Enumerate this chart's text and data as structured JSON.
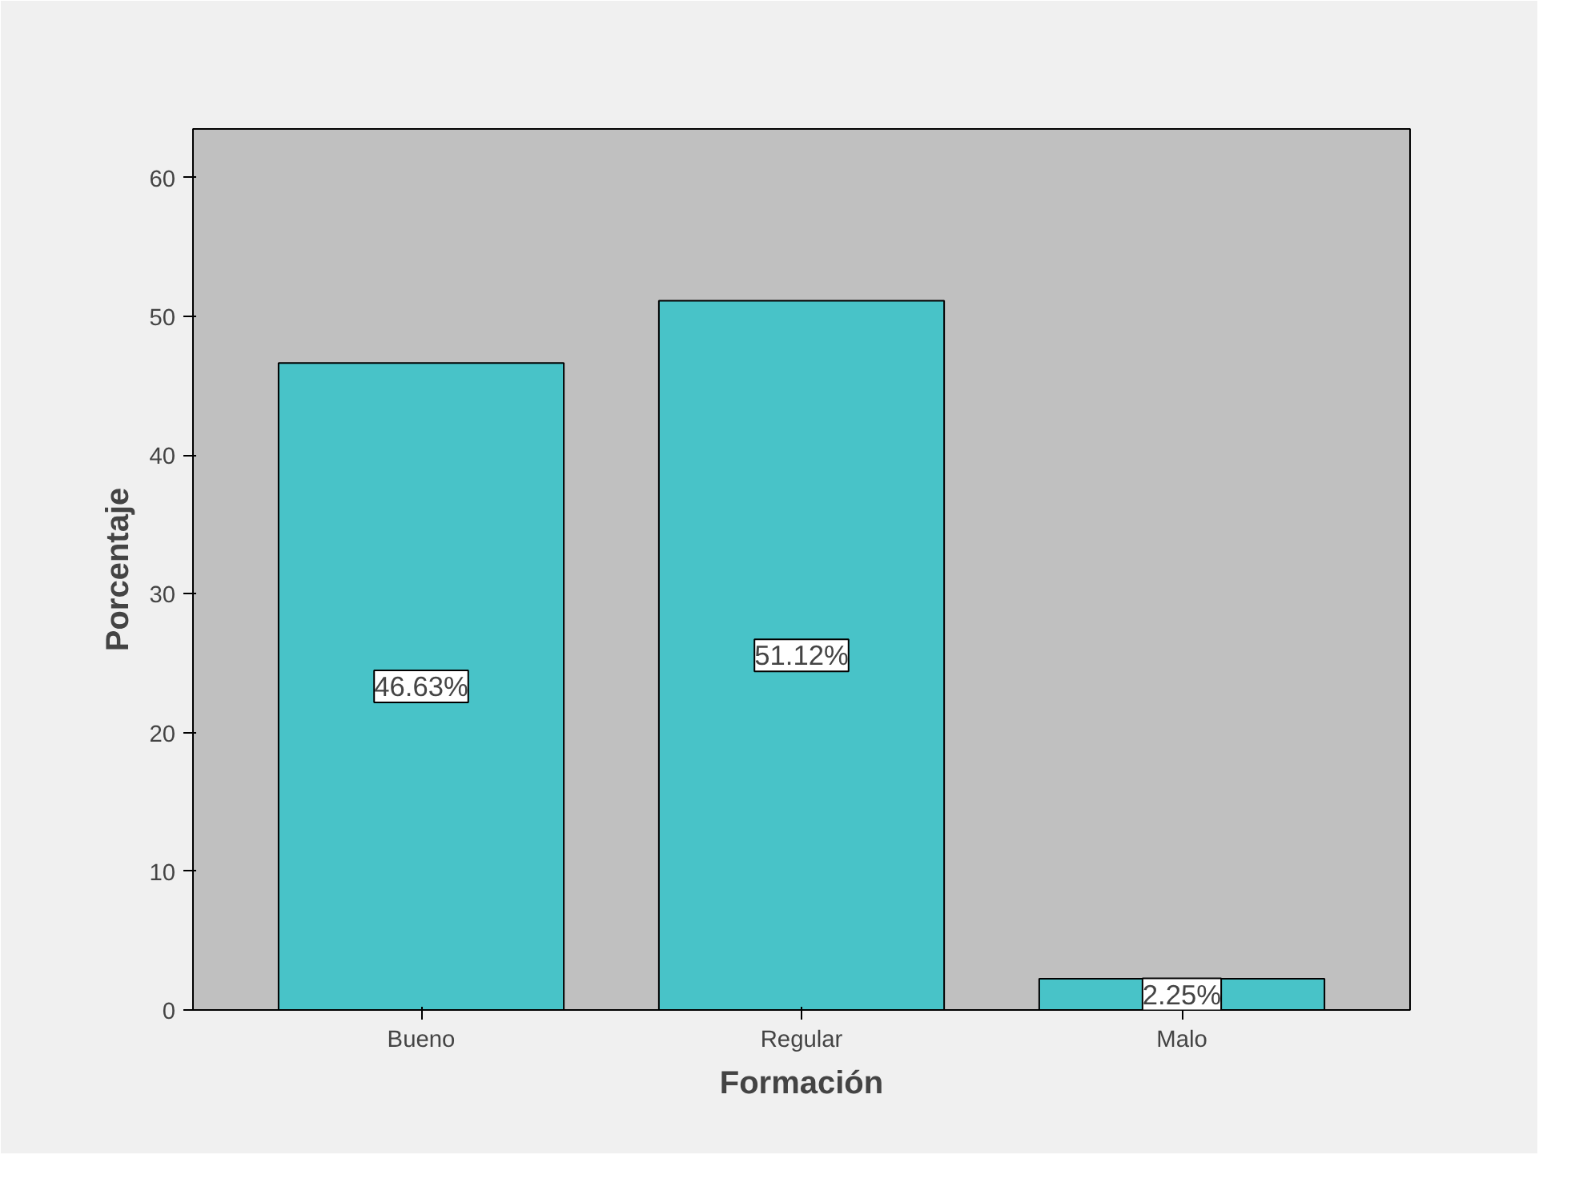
{
  "chart_data": {
    "type": "bar",
    "xlabel": "Formación",
    "ylabel": "Porcentaje",
    "categories": [
      "Bueno",
      "Regular",
      "Malo"
    ],
    "values": [
      46.63,
      51.12,
      2.25
    ],
    "value_labels": [
      "46.63%",
      "51.12%",
      "2.25%"
    ],
    "color": "#48c3c8",
    "ylim": [
      0,
      63.5
    ],
    "yticks": [
      0,
      10,
      20,
      30,
      40,
      50,
      60
    ]
  }
}
